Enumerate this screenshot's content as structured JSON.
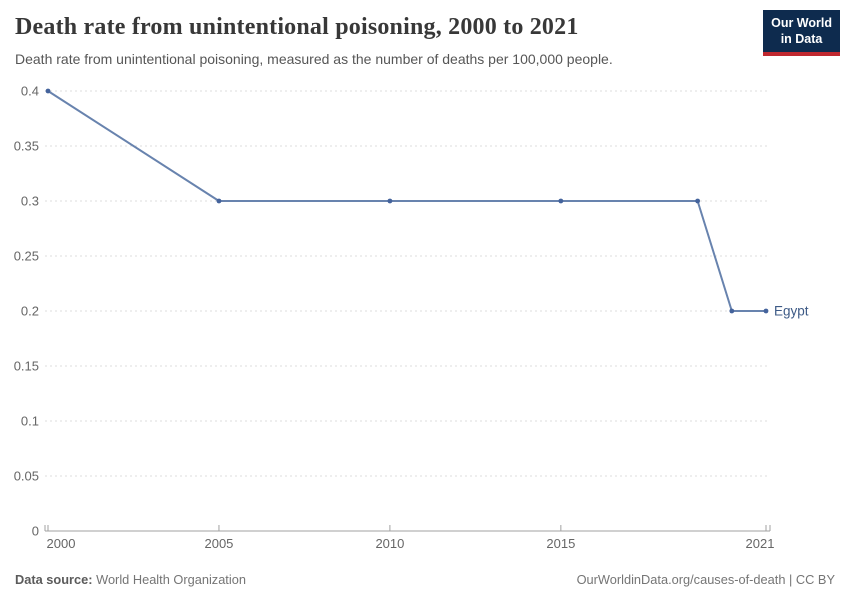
{
  "header": {
    "title": "Death rate from unintentional poisoning, 2000 to 2021",
    "subtitle": "Death rate from unintentional poisoning, measured as the number of deaths per 100,000 people."
  },
  "logo": {
    "line1": "Our World",
    "line2": "in Data",
    "bg_color": "#0e2b4e",
    "accent_color": "#c0282f",
    "text_color": "#ffffff"
  },
  "chart_data": {
    "type": "line",
    "title": "Death rate from unintentional poisoning, 2000 to 2021",
    "xlabel": "",
    "ylabel": "Deaths per 100,000 people",
    "xlim": [
      2000,
      2021
    ],
    "ylim": [
      0,
      0.4
    ],
    "xticks": [
      2000,
      2005,
      2010,
      2015,
      2021
    ],
    "ytick_values": [
      0,
      0.05,
      0.1,
      0.15,
      0.2,
      0.25,
      0.3,
      0.35,
      0.4
    ],
    "ytick_labels": [
      "0",
      "0.05",
      "0.1",
      "0.15",
      "0.2",
      "0.25",
      "0.3",
      "0.35",
      "0.4"
    ],
    "grid": "horizontal-dashed",
    "legend_position": "end-of-line-label",
    "series": [
      {
        "name": "Egypt",
        "x": [
          2000,
          2005,
          2010,
          2015,
          2019,
          2020,
          2021
        ],
        "values": [
          0.4,
          0.3,
          0.3,
          0.3,
          0.3,
          0.2,
          0.2
        ],
        "line_color": "#6883ae",
        "marker_color": "#44639c",
        "label_color": "#3d5a86"
      }
    ],
    "colors": {
      "grid_color": "#dcdcdc",
      "axis_color": "#a1a1a1",
      "tick_label_color": "#666666"
    }
  },
  "footer": {
    "source_label": "Data source:",
    "source_value": "World Health Organization",
    "credit": "OurWorldinData.org/causes-of-death | CC BY"
  }
}
